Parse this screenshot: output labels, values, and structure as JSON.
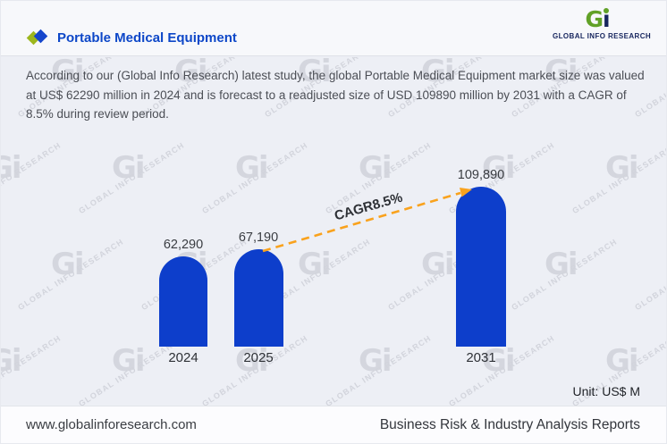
{
  "header": {
    "title": "Portable Medical Equipment",
    "logo": {
      "g": "G",
      "i": "ı",
      "caption": "GLOBAL INFO RESEARCH"
    }
  },
  "description": "According to our (Global Info Research) latest study, the global Portable Medical Equipment market size was valued at US$ 62290 million in 2024 and is forecast to a readjusted size of USD 109890 million by 2031 with a CAGR of 8.5% during review period.",
  "chart_data": {
    "type": "bar",
    "categories": [
      "2024",
      "2025",
      "2031"
    ],
    "values": [
      62290,
      67190,
      109890
    ],
    "value_labels": [
      "62,290",
      "67,190",
      "109,890"
    ],
    "series_name": "Portable Medical Equipment market size (US$ M)",
    "annotation": "CAGR8.5%",
    "unit_label": "Unit: US$ M",
    "ylim": [
      0,
      109890
    ],
    "bar_color": "#0d3ecb",
    "arrow_color": "#f9a21d",
    "grid": false,
    "legend": false
  },
  "footer": {
    "website": "www.globalinforesearch.com",
    "tagline": "Business Risk & Industry Analysis Reports"
  },
  "watermark": {
    "glyph": "Gi",
    "text": "GLOBAL INFO RESEARCH"
  }
}
